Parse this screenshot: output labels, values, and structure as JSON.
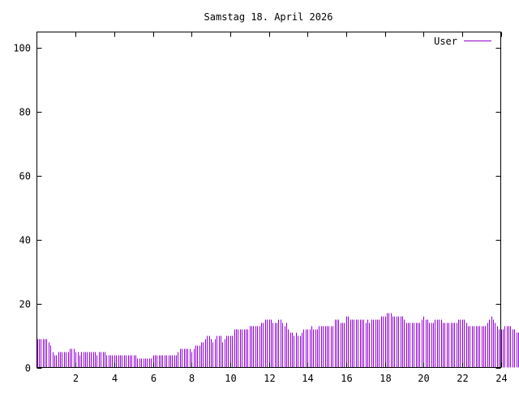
{
  "chart_data": {
    "type": "bar",
    "title": "Samstag 18. April 2026",
    "xlabel": "",
    "ylabel": "",
    "xlim": [
      0,
      24
    ],
    "ylim": [
      0,
      105
    ],
    "x_ticks": [
      2,
      4,
      6,
      8,
      10,
      12,
      14,
      16,
      18,
      20,
      22,
      24
    ],
    "x_tick_labels": [
      "2",
      "4",
      "6",
      "8",
      "10",
      "12",
      "14",
      "16",
      "18",
      "20",
      "22",
      "24"
    ],
    "y_ticks": [
      0,
      20,
      40,
      60,
      80,
      100
    ],
    "y_tick_labels": [
      "0",
      "20",
      "40",
      "60",
      "80",
      "100"
    ],
    "grid": false,
    "legend_position": "top-right",
    "series_color": "#9400d3",
    "series": [
      {
        "name": "User",
        "x_step": 0.1,
        "values": [
          9,
          9,
          9,
          9,
          9,
          9,
          8,
          7,
          5,
          4,
          4,
          5,
          5,
          5,
          5,
          5,
          5,
          6,
          6,
          6,
          5,
          5,
          4,
          5,
          5,
          5,
          5,
          5,
          5,
          5,
          5,
          4,
          5,
          5,
          5,
          5,
          4,
          4,
          4,
          4,
          4,
          4,
          4,
          4,
          4,
          4,
          4,
          4,
          4,
          4,
          4,
          4,
          3,
          3,
          3,
          3,
          3,
          3,
          3,
          3,
          4,
          4,
          4,
          4,
          4,
          4,
          4,
          4,
          4,
          4,
          4,
          4,
          4,
          5,
          6,
          6,
          6,
          6,
          6,
          6,
          5,
          6,
          7,
          7,
          7,
          8,
          8,
          9,
          10,
          10,
          9,
          8,
          9,
          10,
          10,
          10,
          8,
          9,
          10,
          10,
          10,
          10,
          12,
          12,
          12,
          12,
          12,
          12,
          12,
          12,
          13,
          13,
          13,
          13,
          13,
          13,
          14,
          14,
          15,
          15,
          15,
          15,
          14,
          14,
          14,
          15,
          15,
          14,
          13,
          14,
          12,
          11,
          11,
          10,
          11,
          10,
          10,
          11,
          12,
          12,
          12,
          12,
          13,
          12,
          12,
          12,
          13,
          13,
          13,
          13,
          13,
          13,
          13,
          13,
          15,
          15,
          15,
          14,
          14,
          14,
          16,
          16,
          15,
          15,
          15,
          15,
          15,
          15,
          15,
          15,
          14,
          15,
          14,
          15,
          15,
          15,
          15,
          15,
          16,
          16,
          16,
          17,
          17,
          17,
          16,
          16,
          16,
          16,
          16,
          16,
          15,
          14,
          14,
          14,
          14,
          14,
          14,
          14,
          14,
          15,
          16,
          15,
          15,
          14,
          14,
          14,
          15,
          15,
          15,
          15,
          14,
          14,
          14,
          14,
          14,
          14,
          14,
          14,
          15,
          15,
          15,
          15,
          14,
          13,
          13,
          13,
          13,
          13,
          13,
          13,
          13,
          13,
          13,
          14,
          15,
          16,
          15,
          14,
          13,
          12,
          12,
          12,
          13,
          13,
          13,
          13,
          12,
          12,
          11,
          11
        ]
      }
    ]
  }
}
